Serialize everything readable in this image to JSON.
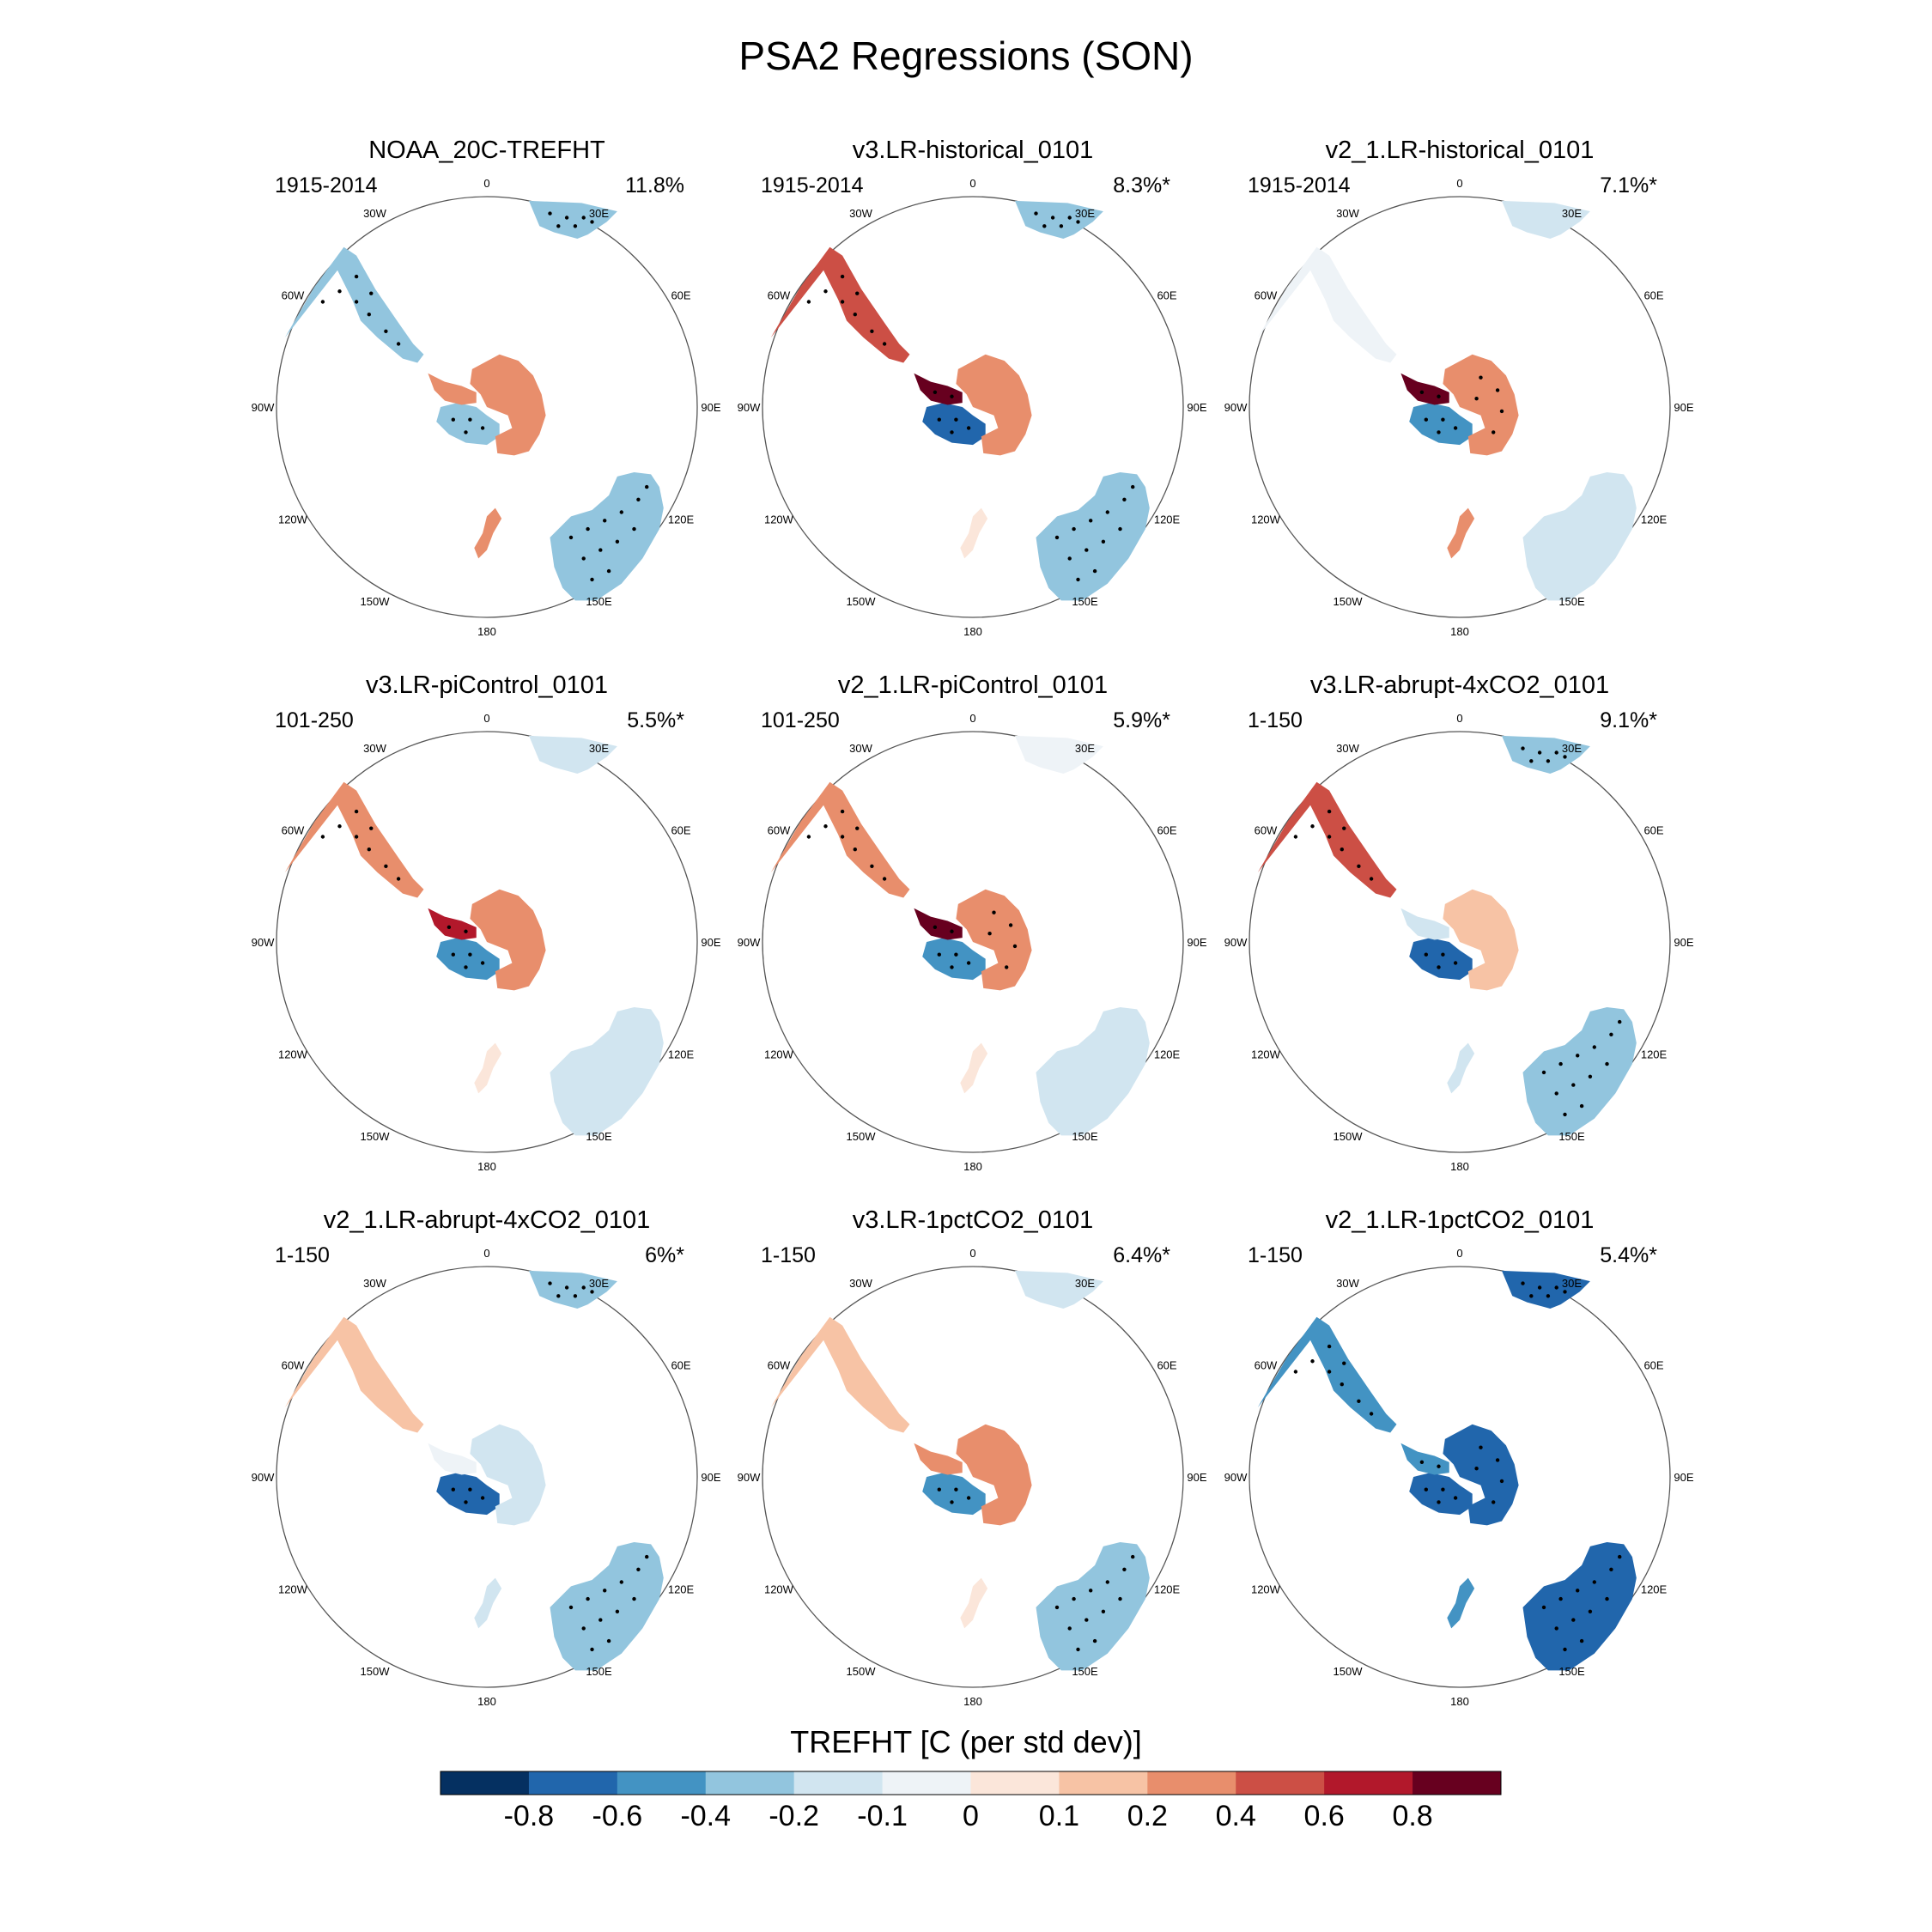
{
  "figure": {
    "title": "PSA2 Regressions (SON)"
  },
  "chart_data": {
    "type": "heatmap",
    "projection": "south-polar-stereographic",
    "title": "PSA2 Regressions (SON)",
    "longitude_labels": [
      "0",
      "30E",
      "60E",
      "90E",
      "120E",
      "150E",
      "180",
      "150W",
      "120W",
      "90W",
      "60W",
      "30W"
    ],
    "panels": [
      {
        "title": "NOAA_20C-TREFHT",
        "period": "1915-2014",
        "variance": "11.8%",
        "regions": {
          "southern_africa": -0.3,
          "patagonia": -0.3,
          "australia": -0.3,
          "antarctica_east": 0.2,
          "antarctica_west": -0.3,
          "antarctic_peninsula": 0.2,
          "new_zealand": 0.3
        }
      },
      {
        "title": "v3.LR-historical_0101",
        "period": "1915-2014",
        "variance": "8.3%*",
        "regions": {
          "southern_africa": -0.3,
          "patagonia": 0.4,
          "australia": -0.3,
          "antarctica_east": 0.2,
          "antarctica_west": -0.8,
          "antarctic_peninsula": 0.8,
          "new_zealand": 0.0
        }
      },
      {
        "title": "v2_1.LR-historical_0101",
        "period": "1915-2014",
        "variance": "7.1%*",
        "regions": {
          "southern_africa": -0.2,
          "patagonia": -0.1,
          "australia": -0.2,
          "antarctica_east": 0.3,
          "antarctica_west": -0.6,
          "antarctic_peninsula": 0.8,
          "new_zealand": 0.3
        }
      },
      {
        "title": "v3.LR-piControl_0101",
        "period": "101-250",
        "variance": "5.5%*",
        "regions": {
          "southern_africa": -0.2,
          "patagonia": 0.3,
          "australia": -0.2,
          "antarctica_east": 0.2,
          "antarctica_west": -0.6,
          "antarctic_peninsula": 0.6,
          "new_zealand": 0.0
        }
      },
      {
        "title": "v2_1.LR-piControl_0101",
        "period": "101-250",
        "variance": "5.9%*",
        "regions": {
          "southern_africa": -0.1,
          "patagonia": 0.3,
          "australia": -0.2,
          "antarctica_east": 0.3,
          "antarctica_west": -0.6,
          "antarctic_peninsula": 0.8,
          "new_zealand": 0.0
        }
      },
      {
        "title": "v3.LR-abrupt-4xCO2_0101",
        "period": "1-150",
        "variance": "9.1%*",
        "regions": {
          "southern_africa": -0.4,
          "patagonia": 0.4,
          "australia": -0.4,
          "antarctica_east": 0.1,
          "antarctica_west": -0.8,
          "antarctic_peninsula": -0.2,
          "new_zealand": -0.2
        }
      },
      {
        "title": "v2_1.LR-abrupt-4xCO2_0101",
        "period": "1-150",
        "variance": "6%*",
        "regions": {
          "southern_africa": -0.4,
          "patagonia": 0.1,
          "australia": -0.4,
          "antarctica_east": -0.2,
          "antarctica_west": -0.8,
          "antarctic_peninsula": -0.1,
          "new_zealand": -0.2
        }
      },
      {
        "title": "v3.LR-1pctCO2_0101",
        "period": "1-150",
        "variance": "6.4%*",
        "regions": {
          "southern_africa": -0.2,
          "patagonia": 0.1,
          "australia": -0.3,
          "antarctica_east": 0.2,
          "antarctica_west": -0.6,
          "antarctic_peninsula": 0.2,
          "new_zealand": 0.0
        }
      },
      {
        "title": "v2_1.LR-1pctCO2_0101",
        "period": "1-150",
        "variance": "5.4%*",
        "regions": {
          "southern_africa": -0.8,
          "patagonia": -0.6,
          "australia": -0.8,
          "antarctica_east": -0.8,
          "antarctica_west": -0.8,
          "antarctic_peninsula": -0.6,
          "new_zealand": -0.6
        }
      }
    ],
    "colorbar": {
      "title": "TREFHT [C (per std dev)]",
      "tick_labels": [
        "-0.8",
        "-0.6",
        "-0.4",
        "-0.2",
        "-0.1",
        "0",
        "0.1",
        "0.2",
        "0.4",
        "0.6",
        "0.8"
      ],
      "levels": [
        -0.8,
        -0.6,
        -0.4,
        -0.2,
        -0.1,
        0,
        0.1,
        0.2,
        0.4,
        0.6,
        0.8
      ],
      "colors": [
        "#053061",
        "#2166ac",
        "#4393c3",
        "#92c5de",
        "#d1e5f0",
        "#eef3f7",
        "#fbe6da",
        "#f7c3a5",
        "#e88e6c",
        "#cc4f45",
        "#b2182b",
        "#67001f"
      ]
    }
  }
}
